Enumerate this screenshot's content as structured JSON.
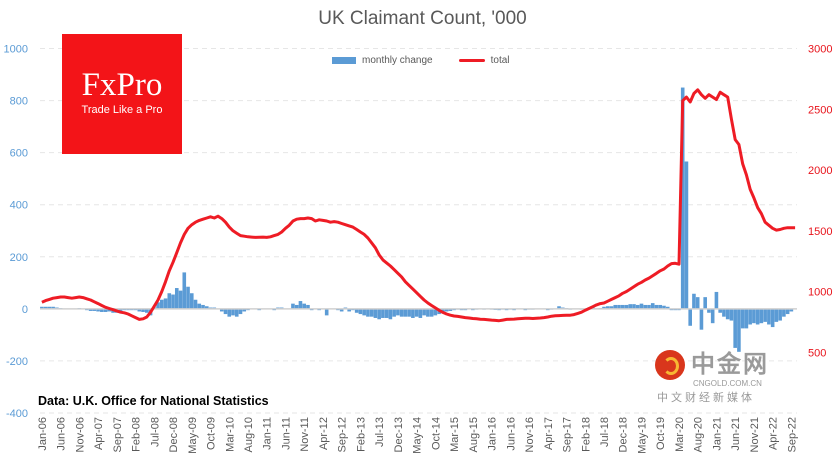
{
  "chart_data": {
    "type": "bar+line",
    "title": "UK Claimant Count, '000",
    "source": "Data: U.K. Office for National Statistics",
    "legend": {
      "position": "top",
      "items": [
        "monthly change",
        "total"
      ]
    },
    "colors": {
      "monthly_change": "#5b9bd5",
      "total": "#ee1c25",
      "left_axis": "#5b9bd5",
      "right_axis": "#e8141c"
    },
    "grid": true,
    "x_start": "Jan-06",
    "x_tick_labels": [
      "Jan-06",
      "Jun-06",
      "Nov-06",
      "Apr-07",
      "Sep-07",
      "Feb-08",
      "Jul-08",
      "Dec-08",
      "May-09",
      "Oct-09",
      "Mar-10",
      "Aug-10",
      "Jan-11",
      "Jun-11",
      "Nov-11",
      "Apr-12",
      "Sep-12",
      "Feb-13",
      "Jul-13",
      "Dec-13",
      "May-14",
      "Oct-14",
      "Mar-15",
      "Aug-15",
      "Jan-16",
      "Jun-16",
      "Nov-16",
      "Apr-17",
      "Sep-17",
      "Feb-18",
      "Jul-18",
      "Dec-18",
      "May-19",
      "Oct-19",
      "Mar-20",
      "Aug-20",
      "Jan-21",
      "Jun-21",
      "Nov-21",
      "Apr-22",
      "Sep-22"
    ],
    "y_left": {
      "lim": [
        -400,
        1000
      ],
      "ticks": [
        1000,
        800,
        600,
        400,
        200,
        0,
        -200,
        -400
      ]
    },
    "y_right": {
      "lim": [
        0,
        3000
      ],
      "ticks": [
        3000,
        2500,
        2000,
        1500,
        1000,
        500
      ]
    },
    "series": [
      {
        "name": "monthly change",
        "type": "bar",
        "axis": "left",
        "values": [
          8,
          8,
          8,
          8,
          5,
          3,
          0,
          0,
          -2,
          0,
          3,
          0,
          -5,
          -8,
          -8,
          -10,
          -12,
          -12,
          -10,
          -15,
          -15,
          -8,
          -5,
          -5,
          -5,
          -5,
          -10,
          -12,
          -15,
          -25,
          5,
          25,
          35,
          40,
          60,
          55,
          80,
          70,
          140,
          85,
          60,
          35,
          20,
          15,
          10,
          5,
          5,
          0,
          -10,
          -20,
          -30,
          -25,
          -30,
          -20,
          -10,
          -5,
          -2,
          -2,
          -5,
          0,
          0,
          0,
          -5,
          5,
          5,
          0,
          0,
          20,
          15,
          30,
          20,
          15,
          -5,
          0,
          -5,
          0,
          -25,
          0,
          0,
          -5,
          -10,
          5,
          -10,
          -5,
          -15,
          -20,
          -25,
          -30,
          -30,
          -35,
          -40,
          -35,
          -35,
          -40,
          -30,
          -25,
          -30,
          -30,
          -30,
          -35,
          -30,
          -35,
          -25,
          -30,
          -30,
          -25,
          -20,
          -15,
          -10,
          -8,
          -5,
          -3,
          -5,
          -5,
          0,
          -5,
          -3,
          0,
          -3,
          -2,
          -3,
          -4,
          -5,
          -3,
          -5,
          -3,
          -5,
          -2,
          0,
          -5,
          -3,
          -3,
          0,
          -2,
          -2,
          -5,
          -3,
          0,
          10,
          5,
          3,
          -3,
          -2,
          0,
          -3,
          -5,
          5,
          10,
          2,
          3,
          8,
          10,
          10,
          15,
          15,
          15,
          15,
          18,
          18,
          15,
          20,
          15,
          15,
          22,
          15,
          15,
          12,
          8,
          -5,
          -5,
          -5,
          850,
          566,
          -65,
          58,
          45,
          -80,
          45,
          -15,
          -55,
          65,
          -15,
          -30,
          -40,
          -45,
          -150,
          -165,
          -75,
          -75,
          -60,
          -55,
          -60,
          -55,
          -50,
          -60,
          -70,
          -50,
          -45,
          -30,
          -20,
          -10,
          0
        ]
      },
      {
        "name": "total",
        "type": "line",
        "axis": "right",
        "values": [
          912,
          925,
          935,
          945,
          950,
          955,
          955,
          950,
          945,
          950,
          955,
          950,
          940,
          930,
          915,
          900,
          885,
          870,
          860,
          850,
          840,
          830,
          825,
          815,
          800,
          785,
          770,
          775,
          790,
          830,
          880,
          930,
          1000,
          1080,
          1170,
          1240,
          1320,
          1400,
          1470,
          1520,
          1550,
          1570,
          1585,
          1595,
          1605,
          1615,
          1605,
          1620,
          1600,
          1570,
          1530,
          1500,
          1480,
          1460,
          1455,
          1450,
          1448,
          1445,
          1447,
          1448,
          1445,
          1450,
          1460,
          1470,
          1490,
          1520,
          1545,
          1580,
          1595,
          1600,
          1600,
          1605,
          1600,
          1580,
          1590,
          1585,
          1580,
          1570,
          1575,
          1570,
          1560,
          1550,
          1540,
          1530,
          1510,
          1490,
          1470,
          1440,
          1400,
          1360,
          1300,
          1260,
          1235,
          1210,
          1180,
          1150,
          1120,
          1080,
          1050,
          1020,
          990,
          960,
          930,
          905,
          885,
          865,
          845,
          828,
          815,
          805,
          798,
          795,
          790,
          785,
          782,
          778,
          775,
          772,
          770,
          768,
          765,
          762,
          760,
          765,
          770,
          772,
          773,
          775,
          778,
          780,
          780,
          778,
          780,
          782,
          785,
          790,
          797,
          800,
          802,
          803,
          804,
          805,
          810,
          820,
          830,
          846,
          860,
          875,
          890,
          900,
          905,
          920,
          935,
          950,
          965,
          985,
          1000,
          1020,
          1040,
          1060,
          1076,
          1095,
          1110,
          1130,
          1150,
          1170,
          1185,
          1210,
          1230,
          1232,
          1225,
          2570,
          2600,
          2560,
          2630,
          2660,
          2620,
          2590,
          2620,
          2600,
          2580,
          2640,
          2620,
          2600,
          2420,
          2250,
          2210,
          2050,
          1960,
          1840,
          1770,
          1690,
          1640,
          1570,
          1545,
          1520,
          1505,
          1510,
          1520,
          1525,
          1525,
          1525
        ]
      }
    ]
  },
  "logo": {
    "brand": "FxPro",
    "tagline": "Trade Like a Pro"
  },
  "watermark": {
    "name": "中金网",
    "url": "CNGOLD.COM.CN",
    "slogan": "中文财经新媒体"
  }
}
